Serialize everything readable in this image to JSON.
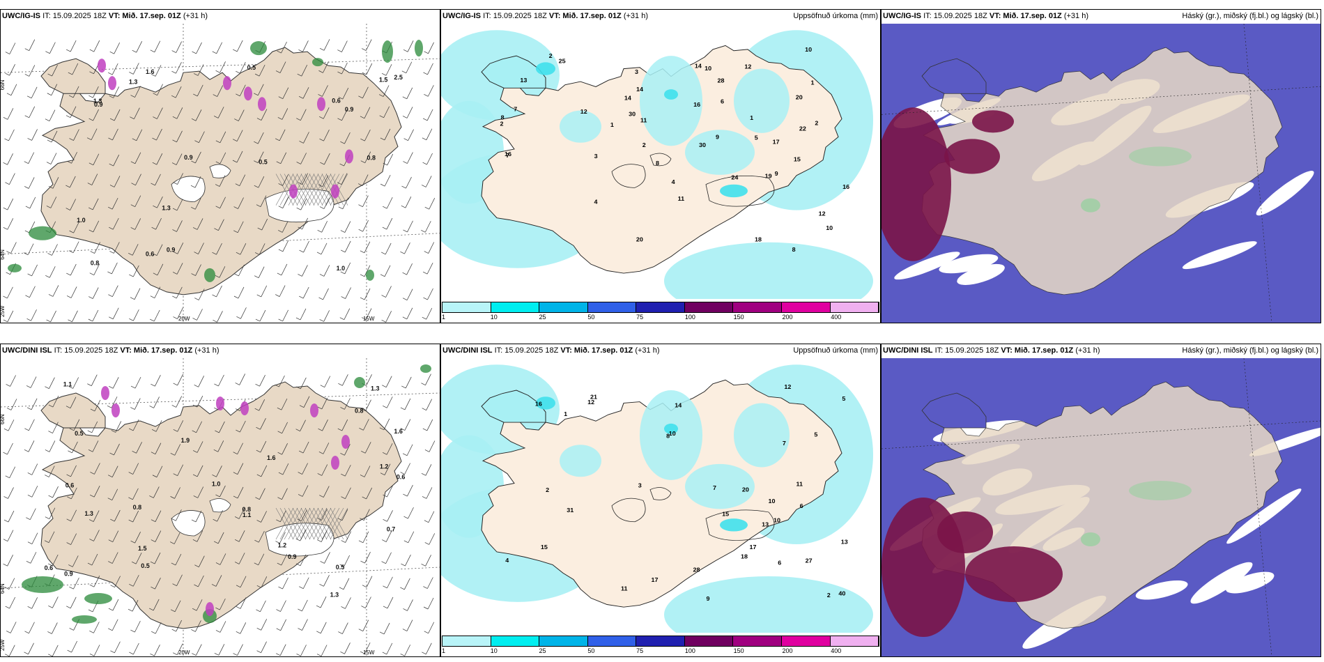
{
  "panels": [
    {
      "model": "UWC/IG-IS",
      "it": "IT: 15.09.2025 18Z",
      "vt": "VT: Mið. 17.sep. 01Z",
      "lead": "(+31 h)",
      "right_title": ""
    },
    {
      "model": "UWC/IG-IS",
      "it": "IT: 15.09.2025 18Z",
      "vt": "VT: Mið. 17.sep. 01Z",
      "lead": "(+31 h)",
      "right_title": "Uppsöfnuð úrkoma (mm)"
    },
    {
      "model": "UWC/IG-IS",
      "it": "IT: 15.09.2025 18Z",
      "vt": "VT: Mið. 17.sep. 01Z",
      "lead": "(+31 h)",
      "right_title": "Háský (gr.), miðský (fj.bl.) og lágský (bl.)"
    },
    {
      "model": "UWC/DINI ISL",
      "it": "IT: 15.09.2025 18Z",
      "vt": "VT: Mið. 17.sep. 01Z",
      "lead": "(+31 h)",
      "right_title": ""
    },
    {
      "model": "UWC/DINI ISL",
      "it": "IT: 15.09.2025 18Z",
      "vt": "VT: Mið. 17.sep. 01Z",
      "lead": "(+31 h)",
      "right_title": "Uppsöfnuð úrkoma (mm)"
    },
    {
      "model": "UWC/DINI ISL",
      "it": "IT: 15.09.2025 18Z",
      "vt": "VT: Mið. 17.sep. 01Z",
      "lead": "(+31 h)",
      "right_title": "Háský (gr.), miðský (fj.bl.) og lágský (bl.)"
    }
  ],
  "axis_labels": {
    "lat66": "66N",
    "lat64": "64N",
    "lon20": "20W",
    "lon15": "15W",
    "lon25": "25W"
  },
  "precip_legend": {
    "ticks": [
      "1",
      "10",
      "25",
      "50",
      "75",
      "100",
      "150",
      "200",
      "400"
    ],
    "colors": [
      "#b8f4f8",
      "#00eef0",
      "#00b4e8",
      "#3060e8",
      "#2020b0",
      "#700060",
      "#a00080",
      "#e000a0",
      "#f0b0f0"
    ]
  },
  "colors": {
    "land": "#e8d9c6",
    "precip_land": "#fbeee0",
    "precip_cyan": "#a8f0f4",
    "precip_cyan2": "#40e0ec",
    "cloud_high_green": "#9ad0a0",
    "cloud_mid": "#5a5ac4",
    "cloud_low": "#7a1448",
    "cloud_white": "#ffffff"
  },
  "panel_labels": [
    [
      "1.3",
      "0.8",
      "0.9",
      "1.0",
      "1.0",
      "0.9",
      "0.5",
      "0.6",
      "1.3",
      "1.5",
      "0.6",
      "1.6",
      "1.3",
      "2.5",
      "0.9",
      "0.5",
      "0.8",
      "0.9"
    ],
    [
      "2",
      "3",
      "8",
      "9",
      "5",
      "7",
      "1",
      "2",
      "20",
      "10",
      "8",
      "25",
      "18",
      "24",
      "11",
      "12",
      "14",
      "22",
      "19",
      "30",
      "15",
      "10",
      "11",
      "12",
      "13",
      "16",
      "17",
      "14",
      "16",
      "20",
      "14",
      "4",
      "12",
      "8",
      "6",
      "9",
      "3",
      "2",
      "1",
      "7",
      "16",
      "2",
      "4",
      "28",
      "30",
      "10",
      "1"
    ],
    [],
    [
      "0.5",
      "1.0",
      "1.2",
      "1.3",
      "0.9",
      "1.3",
      "0.8",
      "0.6",
      "1.2",
      "0.5",
      "0.8",
      "1.1",
      "1.6",
      "1.3",
      "1.6",
      "0.9",
      "0.6",
      "0.7",
      "1.5",
      "1.1",
      "1.9",
      "0.6",
      "0.5",
      "0.8"
    ],
    [
      "2",
      "5",
      "17",
      "10",
      "20",
      "7",
      "9",
      "6",
      "17",
      "13",
      "10",
      "40",
      "28",
      "12",
      "18",
      "11",
      "21",
      "13",
      "8",
      "14",
      "16",
      "12",
      "11",
      "10",
      "4",
      "7",
      "3",
      "15",
      "2",
      "1",
      "5",
      "6",
      "31",
      "15",
      "27"
    ],
    []
  ]
}
